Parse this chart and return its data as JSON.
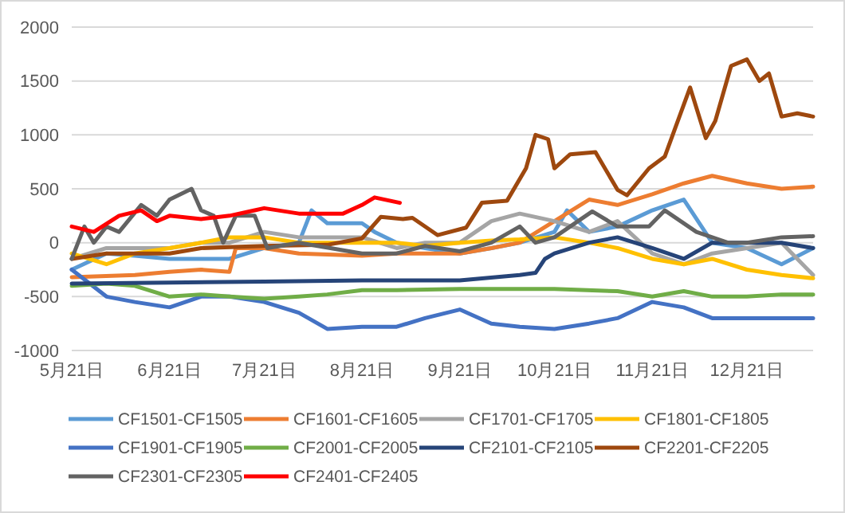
{
  "chart_data": {
    "type": "line",
    "xlim": [
      "2000-05-21",
      "2001-01-11"
    ],
    "xticks": [
      {
        "value": "2000-05-21",
        "label": "5月21日"
      },
      {
        "value": "2000-06-21",
        "label": "6月21日"
      },
      {
        "value": "2000-07-21",
        "label": "7月21日"
      },
      {
        "value": "2000-08-21",
        "label": "8月21日"
      },
      {
        "value": "2000-09-21",
        "label": "9月21日"
      },
      {
        "value": "2000-10-21",
        "label": "10月21日"
      },
      {
        "value": "2000-11-21",
        "label": "11月21日"
      },
      {
        "value": "2000-12-21",
        "label": "12月21日"
      }
    ],
    "ylim": [
      -1000,
      2000
    ],
    "yticks": [
      -1000,
      -500,
      0,
      500,
      1000,
      1500,
      2000
    ],
    "grid": "y",
    "legend": "bottom",
    "line_style": "solid",
    "marker": "none",
    "series": [
      {
        "name": "CF1501-CF1505",
        "color": "#5b9bd5",
        "x": [
          "2000-05-21",
          "2000-06-01",
          "2000-06-10",
          "2000-06-21",
          "2000-07-01",
          "2000-07-10",
          "2000-07-21",
          "2000-08-01",
          "2000-08-05",
          "2000-08-10",
          "2000-08-21",
          "2000-08-25",
          "2000-09-01",
          "2000-09-10",
          "2000-09-21",
          "2000-10-01",
          "2000-10-10",
          "2000-10-21",
          "2000-10-25",
          "2000-11-01",
          "2000-11-10",
          "2000-11-21",
          "2000-12-01",
          "2000-12-10",
          "2000-12-21",
          "2001-01-01",
          "2001-01-11"
        ],
        "values": [
          -250,
          -100,
          -120,
          -150,
          -150,
          -150,
          -50,
          0,
          300,
          180,
          180,
          100,
          0,
          -50,
          -100,
          -50,
          0,
          100,
          300,
          100,
          150,
          300,
          400,
          0,
          -50,
          -200,
          -50
        ]
      },
      {
        "name": "CF1601-CF1605",
        "color": "#ed7d31",
        "x": [
          "2000-05-21",
          "2000-06-10",
          "2000-06-21",
          "2000-07-01",
          "2000-07-10",
          "2000-07-12",
          "2000-07-21",
          "2000-08-01",
          "2000-08-21",
          "2000-09-01",
          "2000-09-21",
          "2000-10-01",
          "2000-10-10",
          "2000-10-21",
          "2000-11-01",
          "2000-11-10",
          "2000-11-21",
          "2000-12-01",
          "2000-12-10",
          "2000-12-21",
          "2001-01-01",
          "2001-01-11"
        ],
        "values": [
          -320,
          -300,
          -270,
          -250,
          -270,
          -50,
          -50,
          -100,
          -120,
          -100,
          -100,
          -50,
          0,
          200,
          400,
          350,
          450,
          550,
          620,
          550,
          500,
          520
        ]
      },
      {
        "name": "CF1701-CF1705",
        "color": "#a5a5a5",
        "x": [
          "2000-05-21",
          "2000-06-01",
          "2000-06-21",
          "2000-07-01",
          "2000-07-10",
          "2000-07-21",
          "2000-08-01",
          "2000-08-21",
          "2000-09-01",
          "2000-09-10",
          "2000-09-21",
          "2000-10-01",
          "2000-10-10",
          "2000-10-21",
          "2000-11-01",
          "2000-11-10",
          "2000-11-21",
          "2000-12-01",
          "2000-12-10",
          "2000-12-21",
          "2001-01-01",
          "2001-01-11"
        ],
        "values": [
          -150,
          -50,
          -50,
          0,
          0,
          100,
          50,
          50,
          -50,
          0,
          0,
          200,
          270,
          200,
          100,
          200,
          -100,
          -200,
          -100,
          -50,
          0,
          -300
        ]
      },
      {
        "name": "CF1801-CF1805",
        "color": "#ffc000",
        "x": [
          "2000-05-21",
          "2000-06-01",
          "2000-06-10",
          "2000-06-21",
          "2000-07-01",
          "2000-07-10",
          "2000-07-21",
          "2000-08-01",
          "2000-08-21",
          "2000-09-01",
          "2000-09-10",
          "2000-09-21",
          "2000-10-01",
          "2000-10-10",
          "2000-10-21",
          "2000-11-01",
          "2000-11-10",
          "2000-11-21",
          "2000-12-01",
          "2000-12-10",
          "2000-12-21",
          "2001-01-01",
          "2001-01-11"
        ],
        "values": [
          -100,
          -200,
          -100,
          -50,
          0,
          50,
          50,
          0,
          0,
          0,
          -30,
          0,
          20,
          30,
          50,
          0,
          -50,
          -150,
          -200,
          -150,
          -250,
          -300,
          -330
        ]
      },
      {
        "name": "CF1901-CF1905",
        "color": "#4472c4",
        "x": [
          "2000-05-21",
          "2000-06-01",
          "2000-06-10",
          "2000-06-21",
          "2000-07-01",
          "2000-07-10",
          "2000-07-21",
          "2000-08-01",
          "2000-08-10",
          "2000-08-21",
          "2000-09-01",
          "2000-09-10",
          "2000-09-21",
          "2000-10-01",
          "2000-10-10",
          "2000-10-21",
          "2000-11-01",
          "2000-11-10",
          "2000-11-21",
          "2000-12-01",
          "2000-12-10",
          "2000-12-21",
          "2001-01-01",
          "2001-01-11"
        ],
        "values": [
          -250,
          -500,
          -550,
          -600,
          -500,
          -500,
          -550,
          -650,
          -800,
          -780,
          -780,
          -700,
          -620,
          -750,
          -780,
          -800,
          -750,
          -700,
          -550,
          -600,
          -700,
          -700,
          -700,
          -700
        ]
      },
      {
        "name": "CF2001-CF2005",
        "color": "#70ad47",
        "x": [
          "2000-05-21",
          "2000-06-01",
          "2000-06-10",
          "2000-06-21",
          "2000-07-01",
          "2000-07-10",
          "2000-07-21",
          "2000-08-01",
          "2000-08-10",
          "2000-08-21",
          "2000-09-01",
          "2000-09-21",
          "2000-10-21",
          "2000-11-10",
          "2000-11-21",
          "2000-12-01",
          "2000-12-10",
          "2000-12-21",
          "2001-01-01",
          "2001-01-11"
        ],
        "values": [
          -400,
          -380,
          -400,
          -500,
          -480,
          -500,
          -520,
          -500,
          -480,
          -440,
          -440,
          -430,
          -430,
          -450,
          -500,
          -450,
          -500,
          -500,
          -480,
          -480
        ]
      },
      {
        "name": "CF2101-CF2105",
        "color": "#264478",
        "x": [
          "2000-05-21",
          "2000-06-21",
          "2000-07-21",
          "2000-08-21",
          "2000-09-21",
          "2000-10-10",
          "2000-10-15",
          "2000-10-18",
          "2000-10-21",
          "2000-11-01",
          "2000-11-10",
          "2000-11-21",
          "2000-12-01",
          "2000-12-10",
          "2000-12-21",
          "2001-01-01",
          "2001-01-11"
        ],
        "values": [
          -380,
          -370,
          -360,
          -350,
          -350,
          -300,
          -280,
          -150,
          -100,
          0,
          50,
          -50,
          -150,
          0,
          0,
          0,
          -50
        ]
      },
      {
        "name": "CF2201-CF2205",
        "color": "#9e480e",
        "x": [
          "2000-05-21",
          "2000-06-01",
          "2000-06-21",
          "2000-07-01",
          "2000-07-21",
          "2000-08-10",
          "2000-08-21",
          "2000-08-27",
          "2000-09-03",
          "2000-09-06",
          "2000-09-14",
          "2000-09-23",
          "2000-09-28",
          "2000-10-06",
          "2000-10-12",
          "2000-10-15",
          "2000-10-19",
          "2000-10-21",
          "2000-10-26",
          "2000-11-03",
          "2000-11-10",
          "2000-11-13",
          "2000-11-20",
          "2000-11-25",
          "2000-11-28",
          "2000-12-03",
          "2000-12-08",
          "2000-12-11",
          "2000-12-16",
          "2000-12-21",
          "2000-12-25",
          "2000-12-28",
          "2001-01-01",
          "2001-01-06",
          "2001-01-11"
        ],
        "values": [
          -150,
          -100,
          -100,
          -50,
          -30,
          -20,
          40,
          240,
          220,
          230,
          70,
          140,
          370,
          390,
          690,
          1000,
          960,
          690,
          820,
          840,
          490,
          440,
          690,
          800,
          1040,
          1440,
          970,
          1130,
          1640,
          1700,
          1500,
          1570,
          1170,
          1200,
          1170
        ]
      },
      {
        "name": "CF2301-CF2305",
        "color": "#636363",
        "x": [
          "2000-05-21",
          "2000-05-25",
          "2000-05-28",
          "2000-06-01",
          "2000-06-05",
          "2000-06-12",
          "2000-06-17",
          "2000-06-21",
          "2000-06-28",
          "2000-07-01",
          "2000-07-05",
          "2000-07-08",
          "2000-07-12",
          "2000-07-18",
          "2000-07-22",
          "2000-08-01",
          "2000-08-21",
          "2000-09-01",
          "2000-09-10",
          "2000-09-21",
          "2000-10-01",
          "2000-10-10",
          "2000-10-15",
          "2000-10-21",
          "2000-11-02",
          "2000-11-10",
          "2000-11-20",
          "2000-11-25",
          "2000-12-05",
          "2000-12-15",
          "2000-12-21",
          "2001-01-01",
          "2001-01-11"
        ],
        "values": [
          -150,
          150,
          0,
          150,
          100,
          350,
          250,
          400,
          500,
          300,
          250,
          0,
          250,
          250,
          -50,
          0,
          -100,
          -100,
          -30,
          -80,
          0,
          150,
          0,
          50,
          290,
          150,
          150,
          300,
          100,
          0,
          0,
          50,
          60
        ]
      },
      {
        "name": "CF2401-CF2405",
        "color": "#ff0000",
        "x": [
          "2000-05-21",
          "2000-05-28",
          "2000-06-05",
          "2000-06-12",
          "2000-06-17",
          "2000-06-21",
          "2000-07-01",
          "2000-07-10",
          "2000-07-18",
          "2000-07-21",
          "2000-08-01",
          "2000-08-10",
          "2000-08-15",
          "2000-08-21",
          "2000-08-25",
          "2000-09-02"
        ],
        "values": [
          150,
          100,
          250,
          300,
          200,
          250,
          220,
          250,
          300,
          320,
          270,
          270,
          270,
          350,
          420,
          370
        ]
      }
    ]
  }
}
